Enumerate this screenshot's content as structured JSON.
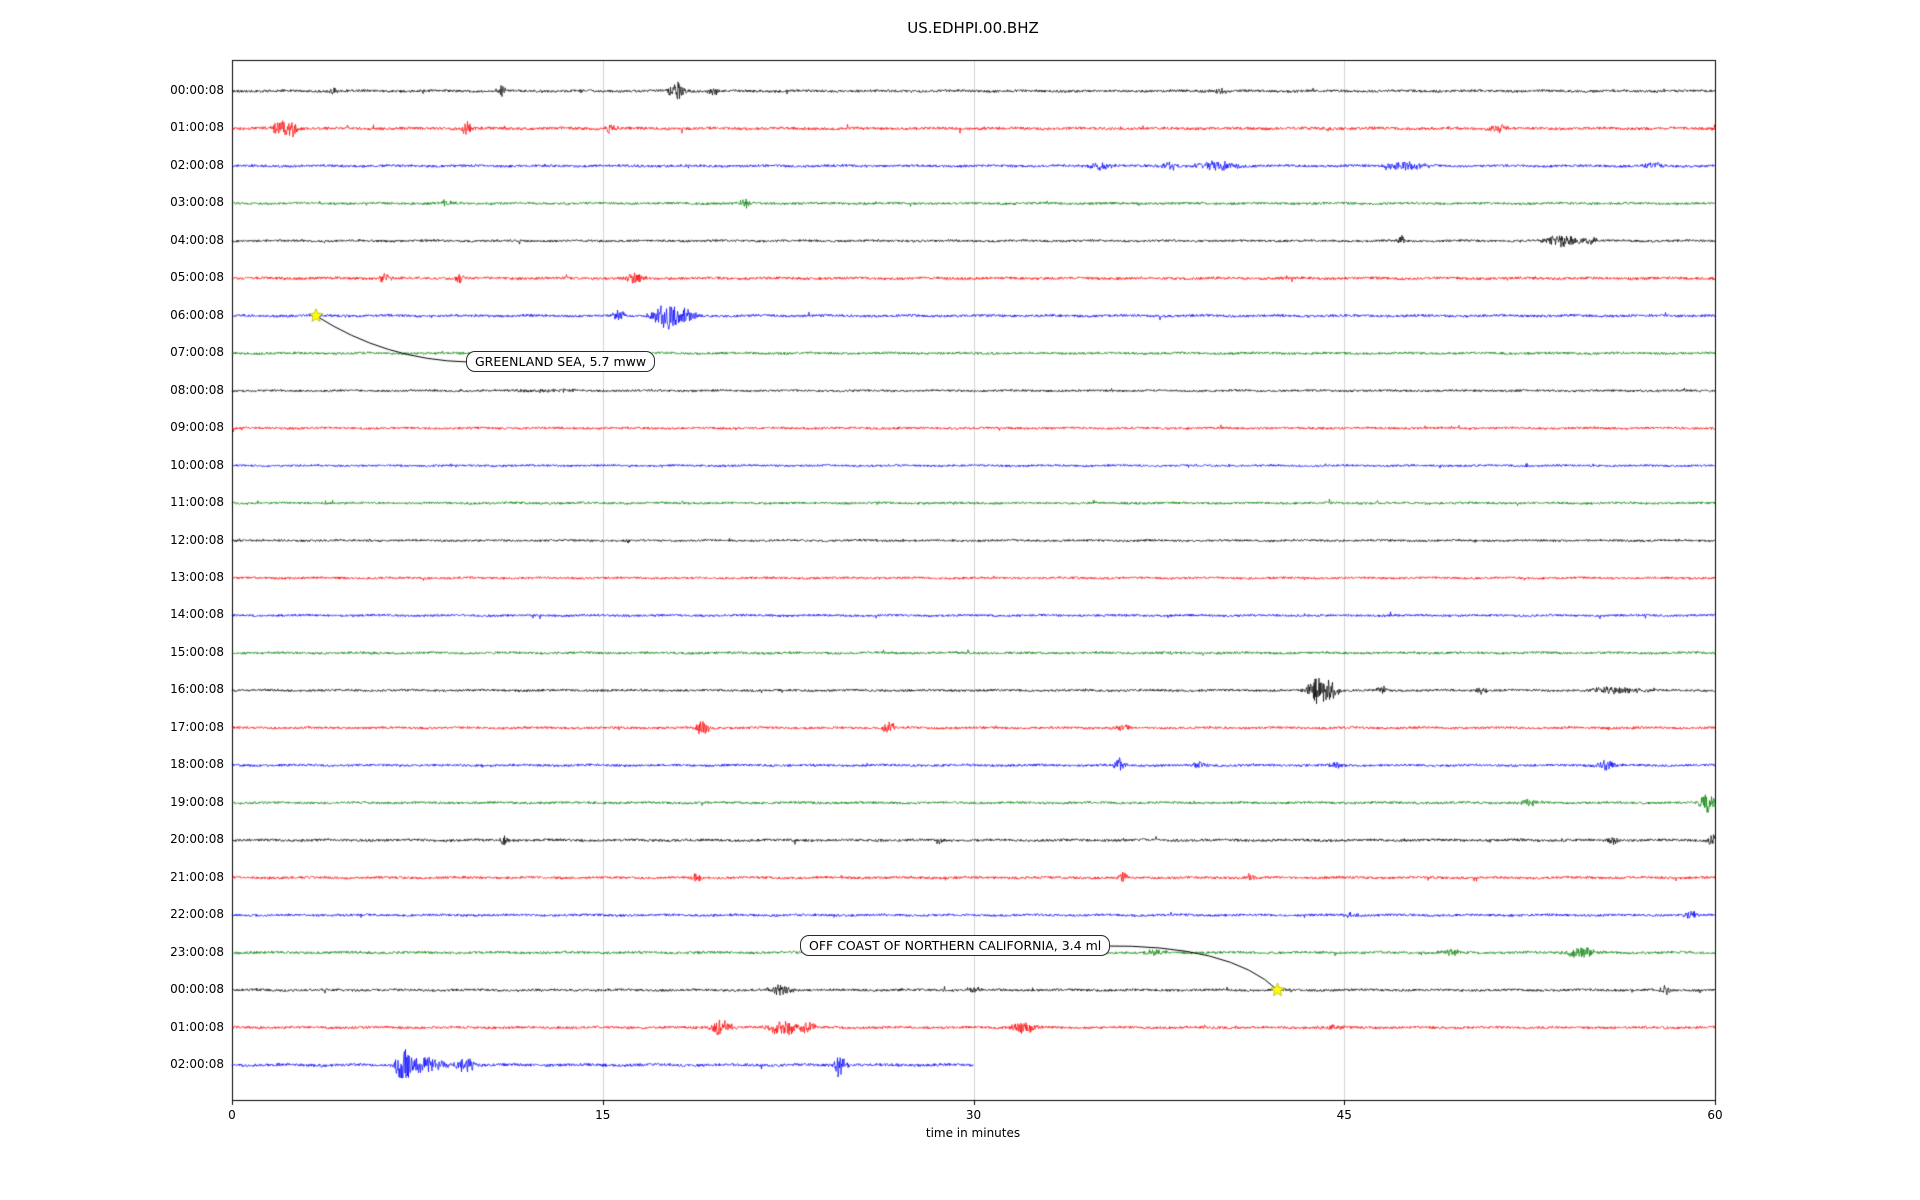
{
  "chart_data": {
    "type": "line",
    "subtype": "seismogram-helicorder-dayplot",
    "title": "US.EDHPI.00.BHZ",
    "xlabel": "time in minutes",
    "xlim": [
      0,
      60
    ],
    "x_ticks": [
      0,
      15,
      30,
      45,
      60
    ],
    "grid": true,
    "trace_color_cycle": [
      "#000000",
      "#ff0000",
      "#0000ff",
      "#008000"
    ],
    "marker_color": "#ffff00",
    "event_fields": [
      "t_minutes",
      "amplitude_px",
      "width_minutes"
    ],
    "rows": [
      {
        "label": "00:00:08",
        "color": "#000000",
        "noise": 0.9,
        "duration_min": 60,
        "events": [
          [
            4.1,
            3,
            0.15
          ],
          [
            10.9,
            5,
            0.12
          ],
          [
            18.0,
            9,
            0.25
          ],
          [
            19.5,
            4,
            0.15
          ],
          [
            40,
            2.5,
            0.3
          ]
        ]
      },
      {
        "label": "01:00:08",
        "color": "#ff0000",
        "noise": 1.0,
        "duration_min": 60,
        "events": [
          [
            2.0,
            9,
            0.25
          ],
          [
            2.5,
            6,
            0.15
          ],
          [
            9.5,
            7,
            0.12
          ],
          [
            15.3,
            5,
            0.2
          ],
          [
            51.2,
            4,
            0.3
          ]
        ]
      },
      {
        "label": "02:00:08",
        "color": "#0000ff",
        "noise": 0.9,
        "duration_min": 60,
        "events": [
          [
            35.1,
            3.5,
            0.4
          ],
          [
            37.9,
            4,
            0.25
          ],
          [
            39.8,
            4.5,
            0.6
          ],
          [
            47.6,
            4,
            0.6
          ],
          [
            57.5,
            3,
            0.3
          ]
        ]
      },
      {
        "label": "03:00:08",
        "color": "#008000",
        "noise": 0.85,
        "duration_min": 60,
        "events": [
          [
            8.7,
            3,
            0.2
          ],
          [
            20.8,
            5,
            0.15
          ]
        ]
      },
      {
        "label": "04:00:08",
        "color": "#000000",
        "noise": 0.8,
        "duration_min": 60,
        "events": [
          [
            47.3,
            6,
            0.08
          ],
          [
            53.8,
            6,
            0.5
          ],
          [
            55,
            3,
            0.2
          ]
        ]
      },
      {
        "label": "05:00:08",
        "color": "#ff0000",
        "noise": 0.95,
        "duration_min": 60,
        "events": [
          [
            6.2,
            5,
            0.15
          ],
          [
            9.2,
            5,
            0.12
          ],
          [
            16.3,
            6,
            0.25
          ]
        ]
      },
      {
        "label": "06:00:08",
        "color": "#0000ff",
        "noise": 0.9,
        "duration_min": 60,
        "events": [
          [
            15.7,
            5,
            0.2
          ],
          [
            17.6,
            13,
            0.35
          ],
          [
            18.4,
            6,
            0.3
          ]
        ]
      },
      {
        "label": "07:00:08",
        "color": "#008000",
        "noise": 0.85,
        "duration_min": 60,
        "events": []
      },
      {
        "label": "08:00:08",
        "color": "#000000",
        "noise": 0.75,
        "duration_min": 60,
        "events": [
          [
            12.8,
            1.5,
            1.0
          ]
        ]
      },
      {
        "label": "09:00:08",
        "color": "#ff0000",
        "noise": 0.8,
        "duration_min": 60,
        "events": []
      },
      {
        "label": "10:00:08",
        "color": "#0000ff",
        "noise": 0.75,
        "duration_min": 60,
        "events": []
      },
      {
        "label": "11:00:08",
        "color": "#008000",
        "noise": 0.8,
        "duration_min": 60,
        "events": []
      },
      {
        "label": "12:00:08",
        "color": "#000000",
        "noise": 0.75,
        "duration_min": 60,
        "events": [
          [
            16,
            3,
            0.08
          ]
        ]
      },
      {
        "label": "13:00:08",
        "color": "#ff0000",
        "noise": 0.8,
        "duration_min": 60,
        "events": []
      },
      {
        "label": "14:00:08",
        "color": "#0000ff",
        "noise": 0.8,
        "duration_min": 60,
        "events": []
      },
      {
        "label": "15:00:08",
        "color": "#008000",
        "noise": 0.85,
        "duration_min": 60,
        "events": []
      },
      {
        "label": "16:00:08",
        "color": "#000000",
        "noise": 0.8,
        "duration_min": 60,
        "events": [
          [
            43.9,
            13,
            0.3
          ],
          [
            44.5,
            8,
            0.2
          ],
          [
            46.5,
            5,
            0.15
          ],
          [
            50.5,
            3.5,
            0.2
          ],
          [
            56,
            3.5,
            0.8
          ]
        ]
      },
      {
        "label": "17:00:08",
        "color": "#ff0000",
        "noise": 0.85,
        "duration_min": 60,
        "events": [
          [
            19,
            8,
            0.2
          ],
          [
            26.6,
            8,
            0.15
          ],
          [
            36,
            3,
            0.3
          ]
        ]
      },
      {
        "label": "18:00:08",
        "color": "#0000ff",
        "noise": 0.85,
        "duration_min": 60,
        "events": [
          [
            35.9,
            7,
            0.15
          ],
          [
            39.2,
            4,
            0.2
          ],
          [
            44.7,
            3,
            0.2
          ],
          [
            55.6,
            5,
            0.25
          ]
        ]
      },
      {
        "label": "19:00:08",
        "color": "#008000",
        "noise": 0.85,
        "duration_min": 60,
        "events": [
          [
            52.5,
            3.5,
            0.3
          ],
          [
            59.7,
            10,
            0.25
          ]
        ]
      },
      {
        "label": "20:00:08",
        "color": "#000000",
        "noise": 0.9,
        "duration_min": 60,
        "events": [
          [
            11,
            6,
            0.1
          ],
          [
            28.6,
            5,
            0.12
          ],
          [
            55.8,
            5,
            0.2
          ],
          [
            59.9,
            6,
            0.15
          ]
        ]
      },
      {
        "label": "21:00:08",
        "color": "#ff0000",
        "noise": 0.9,
        "duration_min": 60,
        "events": [
          [
            18.8,
            4,
            0.2
          ],
          [
            36.1,
            6,
            0.15
          ],
          [
            41.2,
            4,
            0.2
          ]
        ]
      },
      {
        "label": "22:00:08",
        "color": "#0000ff",
        "noise": 0.85,
        "duration_min": 60,
        "events": [
          [
            45.3,
            3,
            0.2
          ],
          [
            59,
            4,
            0.2
          ]
        ]
      },
      {
        "label": "23:00:08",
        "color": "#008000",
        "noise": 0.9,
        "duration_min": 60,
        "events": [
          [
            37.4,
            3,
            0.3
          ],
          [
            49.3,
            3.5,
            0.3
          ],
          [
            54.6,
            5,
            0.4
          ]
        ]
      },
      {
        "label": "00:00:08",
        "color": "#000000",
        "noise": 0.85,
        "duration_min": 60,
        "events": [
          [
            22.2,
            6,
            0.3
          ],
          [
            30,
            2.5,
            0.3
          ],
          [
            58,
            5,
            0.15
          ]
        ]
      },
      {
        "label": "01:00:08",
        "color": "#ff0000",
        "noise": 0.9,
        "duration_min": 60,
        "events": [
          [
            19.8,
            8,
            0.3
          ],
          [
            22.3,
            8,
            0.4
          ],
          [
            23.3,
            6,
            0.2
          ],
          [
            32,
            6,
            0.35
          ],
          [
            44.5,
            2.5,
            0.3
          ]
        ]
      },
      {
        "label": "02:00:08",
        "color": "#0000ff",
        "noise": 1.0,
        "duration_min": 30,
        "events": [
          [
            6.9,
            16,
            0.2
          ],
          [
            7.8,
            9,
            0.5
          ],
          [
            9.5,
            7,
            0.3
          ],
          [
            24.6,
            13,
            0.15
          ]
        ]
      }
    ],
    "annotations": [
      {
        "text": "GREENLAND SEA, 5.7 mww",
        "row_index": 6,
        "marker_minute": 3.4
      },
      {
        "text": "OFF COAST OF NORTHERN CALIFORNIA, 3.4 ml",
        "row_index": 24,
        "marker_minute": 42.3
      }
    ]
  }
}
